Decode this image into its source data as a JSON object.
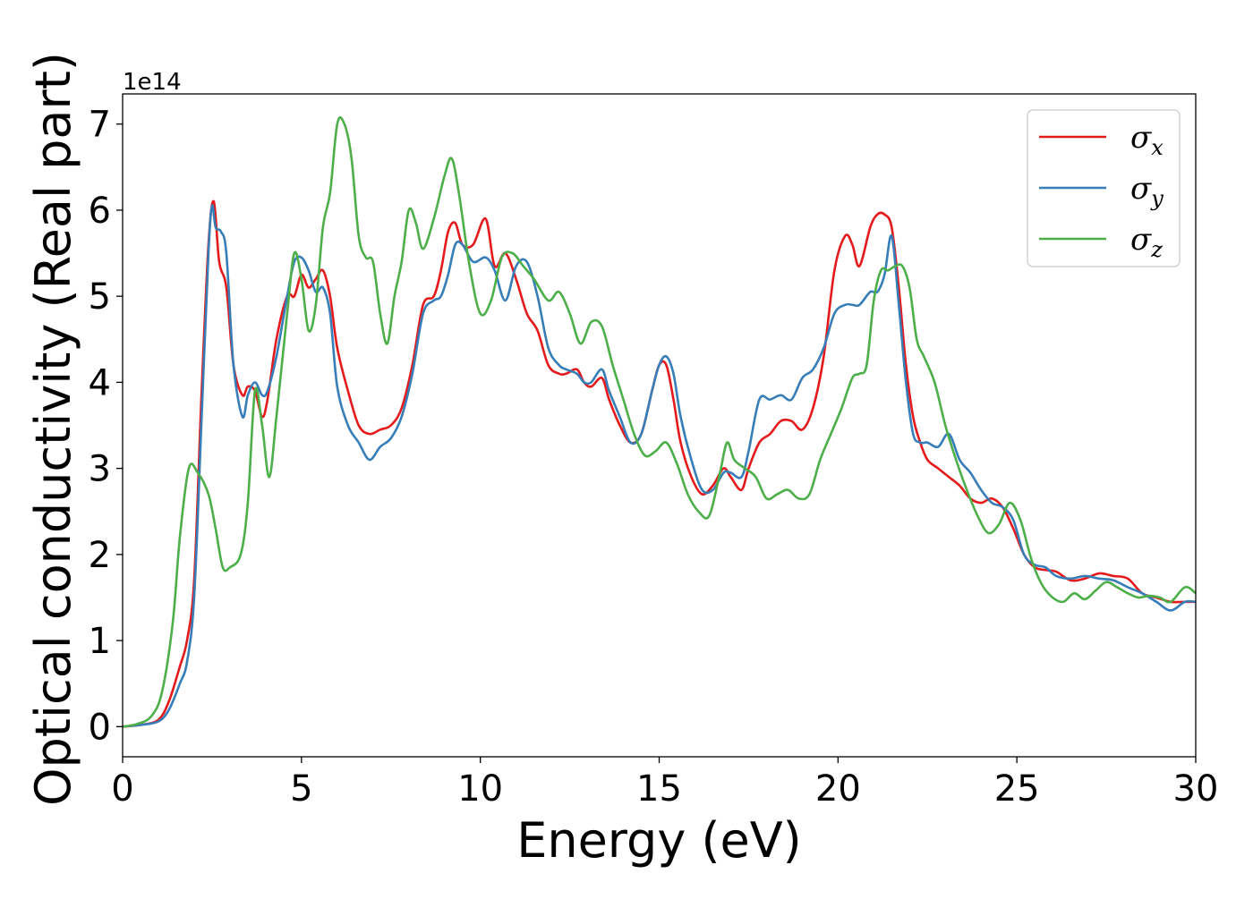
{
  "chart_data": {
    "type": "line",
    "xlabel": "Energy (eV)",
    "ylabel": "Optical conductivity (Real part)",
    "y_offset_text": "1e14",
    "xlim": [
      0,
      30
    ],
    "ylim": [
      -0.35,
      7.35
    ],
    "xticks": [
      0,
      5,
      10,
      15,
      20,
      25,
      30
    ],
    "yticks": [
      0,
      1,
      2,
      3,
      4,
      5,
      6,
      7
    ],
    "grid": false,
    "legend_position": "top-right",
    "series": [
      {
        "name": "σx",
        "symbol": "σ",
        "subscript": "x",
        "color": "#e41a1c",
        "x": [
          0,
          0.5,
          1.0,
          1.3,
          1.6,
          1.8,
          2.0,
          2.2,
          2.4,
          2.55,
          2.7,
          2.9,
          3.1,
          3.35,
          3.5,
          3.7,
          3.9,
          4.05,
          4.3,
          4.6,
          4.8,
          5.0,
          5.2,
          5.4,
          5.6,
          5.8,
          6.0,
          6.3,
          6.6,
          6.9,
          7.2,
          7.5,
          7.8,
          8.1,
          8.4,
          8.7,
          8.9,
          9.1,
          9.3,
          9.5,
          9.8,
          10.15,
          10.4,
          10.7,
          11.0,
          11.3,
          11.6,
          11.9,
          12.2,
          12.4,
          12.7,
          12.9,
          13.1,
          13.4,
          13.6,
          13.9,
          14.2,
          14.5,
          14.8,
          15.0,
          15.2,
          15.4,
          15.6,
          15.9,
          16.2,
          16.5,
          16.8,
          17.0,
          17.3,
          17.5,
          17.8,
          18.1,
          18.4,
          18.7,
          19.0,
          19.3,
          19.6,
          19.9,
          20.2,
          20.4,
          20.6,
          20.9,
          21.1,
          21.3,
          21.5,
          21.7,
          21.9,
          22.1,
          22.3,
          22.5,
          22.8,
          23.1,
          23.4,
          23.7,
          24.0,
          24.3,
          24.6,
          24.9,
          25.2,
          25.5,
          25.8,
          26.1,
          26.5,
          26.9,
          27.3,
          27.7,
          28.1,
          28.5,
          28.9,
          29.3,
          29.7,
          30
        ],
        "y": [
          0,
          0.02,
          0.08,
          0.3,
          0.7,
          1.0,
          1.7,
          3.8,
          5.6,
          6.1,
          5.4,
          5.1,
          4.2,
          3.85,
          3.95,
          3.9,
          3.6,
          3.8,
          4.5,
          5.0,
          5.0,
          5.25,
          5.1,
          5.2,
          5.3,
          5.0,
          4.4,
          3.9,
          3.5,
          3.4,
          3.45,
          3.5,
          3.7,
          4.2,
          4.9,
          5.0,
          5.3,
          5.75,
          5.85,
          5.6,
          5.6,
          5.9,
          5.35,
          5.5,
          5.2,
          4.8,
          4.6,
          4.2,
          4.1,
          4.1,
          4.15,
          4.0,
          3.95,
          4.05,
          3.8,
          3.5,
          3.3,
          3.4,
          3.9,
          4.2,
          4.2,
          3.8,
          3.3,
          2.9,
          2.7,
          2.8,
          3.0,
          2.9,
          2.75,
          3.0,
          3.3,
          3.4,
          3.55,
          3.55,
          3.45,
          3.7,
          4.3,
          5.3,
          5.7,
          5.6,
          5.35,
          5.8,
          5.95,
          5.95,
          5.8,
          5.1,
          4.2,
          3.6,
          3.3,
          3.1,
          3.0,
          2.9,
          2.8,
          2.65,
          2.6,
          2.65,
          2.55,
          2.3,
          2.0,
          1.85,
          1.82,
          1.8,
          1.7,
          1.72,
          1.78,
          1.75,
          1.72,
          1.55,
          1.5,
          1.45,
          1.45,
          1.45
        ]
      },
      {
        "name": "σy",
        "symbol": "σ",
        "subscript": "y",
        "color": "#377eb8",
        "x": [
          0,
          0.5,
          1.0,
          1.3,
          1.6,
          1.8,
          2.0,
          2.2,
          2.4,
          2.5,
          2.6,
          2.75,
          2.9,
          3.1,
          3.35,
          3.5,
          3.7,
          3.9,
          4.05,
          4.3,
          4.6,
          4.8,
          5.0,
          5.2,
          5.4,
          5.6,
          5.8,
          6.0,
          6.3,
          6.6,
          6.9,
          7.2,
          7.5,
          7.8,
          8.1,
          8.4,
          8.7,
          8.9,
          9.1,
          9.3,
          9.5,
          9.8,
          10.15,
          10.4,
          10.7,
          11.0,
          11.3,
          11.6,
          11.9,
          12.2,
          12.4,
          12.7,
          12.9,
          13.1,
          13.4,
          13.6,
          13.9,
          14.2,
          14.5,
          14.8,
          15.0,
          15.2,
          15.4,
          15.6,
          15.9,
          16.2,
          16.5,
          16.8,
          17.0,
          17.3,
          17.5,
          17.8,
          18.1,
          18.4,
          18.7,
          19.0,
          19.3,
          19.6,
          19.9,
          20.2,
          20.4,
          20.6,
          20.9,
          21.1,
          21.3,
          21.5,
          21.7,
          21.9,
          22.1,
          22.3,
          22.5,
          22.8,
          23.1,
          23.4,
          23.7,
          24.0,
          24.3,
          24.6,
          24.9,
          25.2,
          25.5,
          25.8,
          26.1,
          26.5,
          26.9,
          27.3,
          27.7,
          28.1,
          28.5,
          28.9,
          29.3,
          29.7,
          30
        ],
        "y": [
          0,
          0.02,
          0.06,
          0.2,
          0.5,
          0.75,
          1.5,
          3.5,
          5.5,
          6.05,
          5.8,
          5.75,
          5.5,
          4.2,
          3.6,
          3.85,
          4.0,
          3.85,
          3.9,
          4.3,
          5.0,
          5.4,
          5.45,
          5.3,
          5.05,
          5.1,
          4.8,
          3.95,
          3.5,
          3.3,
          3.1,
          3.25,
          3.35,
          3.6,
          4.1,
          4.8,
          4.95,
          5.0,
          5.25,
          5.6,
          5.6,
          5.4,
          5.45,
          5.3,
          4.95,
          5.35,
          5.4,
          5.0,
          4.4,
          4.2,
          4.15,
          4.1,
          4.0,
          4.0,
          4.15,
          3.9,
          3.6,
          3.3,
          3.4,
          3.9,
          4.2,
          4.3,
          4.1,
          3.6,
          3.1,
          2.75,
          2.75,
          2.95,
          2.95,
          2.9,
          3.2,
          3.8,
          3.8,
          3.85,
          3.8,
          4.05,
          4.15,
          4.4,
          4.8,
          4.9,
          4.9,
          4.9,
          5.05,
          5.05,
          5.25,
          5.7,
          4.9,
          4.0,
          3.4,
          3.3,
          3.3,
          3.25,
          3.4,
          3.1,
          2.95,
          2.75,
          2.6,
          2.55,
          2.4,
          2.0,
          1.88,
          1.85,
          1.75,
          1.72,
          1.75,
          1.72,
          1.7,
          1.62,
          1.55,
          1.45,
          1.35,
          1.45,
          1.45
        ]
      },
      {
        "name": "σz",
        "symbol": "σ",
        "subscript": "z",
        "color": "#4daf4a",
        "x": [
          0,
          0.4,
          0.8,
          1.1,
          1.4,
          1.6,
          1.85,
          2.1,
          2.4,
          2.6,
          2.8,
          3.0,
          3.3,
          3.5,
          3.7,
          3.9,
          4.1,
          4.3,
          4.6,
          4.8,
          5.0,
          5.2,
          5.4,
          5.6,
          5.8,
          6.0,
          6.2,
          6.4,
          6.6,
          6.8,
          7.0,
          7.2,
          7.4,
          7.6,
          7.8,
          8.0,
          8.2,
          8.4,
          8.7,
          9.0,
          9.2,
          9.4,
          9.7,
          10.0,
          10.3,
          10.6,
          10.9,
          11.2,
          11.5,
          11.9,
          12.2,
          12.5,
          12.8,
          13.1,
          13.4,
          13.7,
          14.0,
          14.3,
          14.6,
          14.9,
          15.2,
          15.5,
          15.8,
          16.1,
          16.4,
          16.7,
          16.9,
          17.1,
          17.4,
          17.7,
          18.0,
          18.3,
          18.6,
          18.9,
          19.2,
          19.5,
          19.8,
          20.1,
          20.4,
          20.6,
          20.8,
          21.0,
          21.2,
          21.4,
          21.6,
          21.8,
          22.0,
          22.2,
          22.4,
          22.7,
          23.0,
          23.3,
          23.6,
          23.9,
          24.2,
          24.5,
          24.8,
          25.1,
          25.4,
          25.7,
          26.0,
          26.3,
          26.6,
          26.9,
          27.2,
          27.5,
          27.8,
          28.1,
          28.4,
          28.7,
          29.0,
          29.3,
          29.7,
          30
        ],
        "y": [
          0,
          0.03,
          0.12,
          0.4,
          1.2,
          2.2,
          3.0,
          2.95,
          2.7,
          2.3,
          1.85,
          1.85,
          2.0,
          2.6,
          3.9,
          3.5,
          2.9,
          3.6,
          4.8,
          5.5,
          5.2,
          4.6,
          4.9,
          5.8,
          6.2,
          7.0,
          7.0,
          6.6,
          5.7,
          5.45,
          5.4,
          4.8,
          4.45,
          5.0,
          5.4,
          6.0,
          5.85,
          5.55,
          5.9,
          6.4,
          6.6,
          6.2,
          5.35,
          4.8,
          4.95,
          5.45,
          5.5,
          5.35,
          5.2,
          4.95,
          5.05,
          4.8,
          4.45,
          4.7,
          4.65,
          4.2,
          3.8,
          3.4,
          3.15,
          3.2,
          3.3,
          3.05,
          2.7,
          2.5,
          2.45,
          2.95,
          3.3,
          3.1,
          3.0,
          2.9,
          2.65,
          2.7,
          2.75,
          2.65,
          2.7,
          3.1,
          3.4,
          3.7,
          4.05,
          4.1,
          4.2,
          4.95,
          5.3,
          5.3,
          5.35,
          5.35,
          5.1,
          4.5,
          4.3,
          4.0,
          3.5,
          3.1,
          2.75,
          2.45,
          2.25,
          2.35,
          2.6,
          2.4,
          1.95,
          1.65,
          1.5,
          1.45,
          1.55,
          1.48,
          1.58,
          1.68,
          1.62,
          1.55,
          1.5,
          1.52,
          1.5,
          1.45,
          1.62,
          1.55
        ]
      }
    ]
  }
}
